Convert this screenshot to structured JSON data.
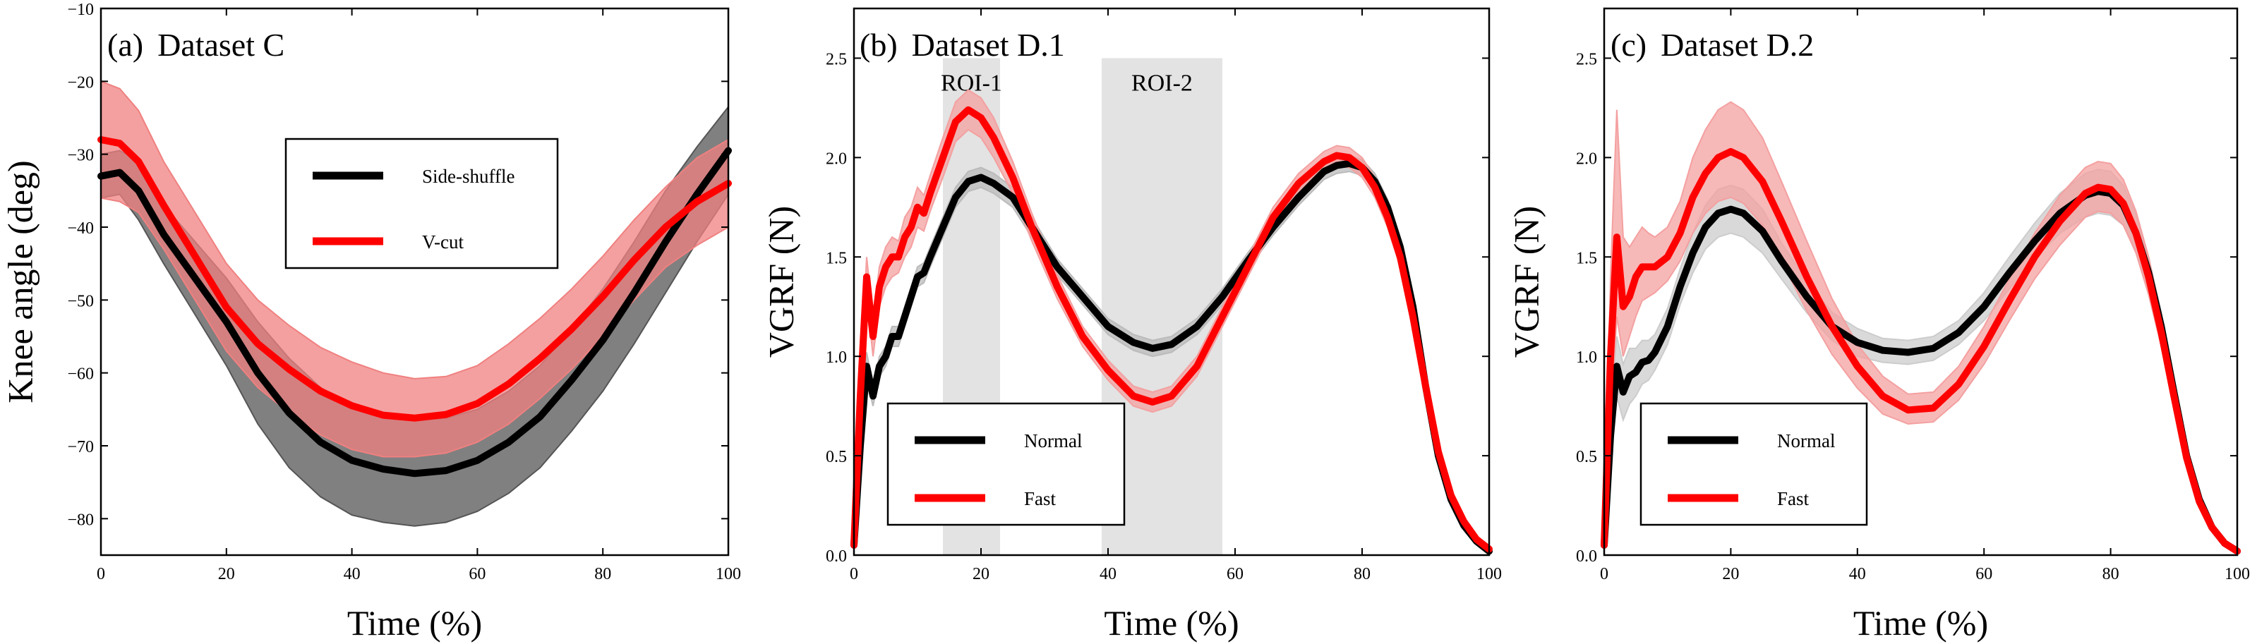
{
  "chart_data": [
    {
      "type": "line",
      "panel": "(a)",
      "title": "Dataset C",
      "xlabel": "Time  (%)",
      "ylabel": "Knee angle  (deg)",
      "xlim": [
        0,
        100
      ],
      "ylim": [
        -85,
        -10
      ],
      "xticks": [
        "0",
        "20",
        "40",
        "60",
        "80",
        "100"
      ],
      "yticks": [
        "−80",
        "−70",
        "−60",
        "−50",
        "−40",
        "−30",
        "−20",
        "−10"
      ],
      "legend_position": "upper-center",
      "legend": [
        "Side-shuffle",
        "V-cut"
      ],
      "series": [
        {
          "name": "Side-shuffle",
          "color": "#000000",
          "band_color": "#555555",
          "x": [
            0,
            3,
            6,
            10,
            15,
            20,
            25,
            30,
            35,
            40,
            45,
            50,
            55,
            60,
            65,
            70,
            75,
            80,
            85,
            90,
            95,
            100
          ],
          "mean": [
            -33,
            -32.5,
            -35,
            -41,
            -47,
            -53,
            -60,
            -65.5,
            -69.5,
            -72,
            -73.2,
            -73.8,
            -73.4,
            -72,
            -69.5,
            -66,
            -61,
            -55.5,
            -49,
            -42,
            -35.5,
            -29.5
          ],
          "lower": [
            -36,
            -35.5,
            -39,
            -45,
            -52,
            -59,
            -67,
            -73,
            -77,
            -79.5,
            -80.5,
            -81,
            -80.5,
            -79,
            -76.5,
            -73,
            -68,
            -62.5,
            -56,
            -49,
            -42,
            -35.5
          ],
          "upper": [
            -30,
            -29.5,
            -31,
            -37,
            -42,
            -47,
            -53,
            -58,
            -62,
            -64.5,
            -66,
            -66.5,
            -66.2,
            -65,
            -62.5,
            -59,
            -54,
            -48.5,
            -42,
            -35,
            -29,
            -23.5
          ]
        },
        {
          "name": "V-cut",
          "color": "#ff0000",
          "band_color": "#f08080",
          "x": [
            0,
            3,
            6,
            10,
            15,
            20,
            25,
            30,
            35,
            40,
            45,
            50,
            55,
            60,
            65,
            70,
            75,
            80,
            85,
            90,
            95,
            100
          ],
          "mean": [
            -28,
            -28.5,
            -31,
            -37,
            -44,
            -51,
            -56,
            -59.5,
            -62.5,
            -64.5,
            -65.8,
            -66.2,
            -65.7,
            -64.2,
            -61.5,
            -58,
            -54,
            -49.5,
            -44.5,
            -40,
            -36.5,
            -34
          ],
          "lower": [
            -36,
            -36.5,
            -38,
            -43,
            -50,
            -57,
            -62,
            -65.5,
            -68.5,
            -70.5,
            -71.5,
            -71.5,
            -71,
            -69.5,
            -67,
            -63.5,
            -59.5,
            -55,
            -50,
            -45.5,
            -42.5,
            -40
          ],
          "upper": [
            -20,
            -21,
            -24,
            -31,
            -38,
            -45,
            -50,
            -53.5,
            -56.5,
            -58.5,
            -60,
            -60.8,
            -60.5,
            -59,
            -56,
            -52.5,
            -48.5,
            -44,
            -39,
            -34.5,
            -30.5,
            -28
          ]
        }
      ]
    },
    {
      "type": "line",
      "panel": "(b)",
      "title": "Dataset D.1",
      "xlabel": "Time  (%)",
      "ylabel": "VGRF  (N)",
      "xlim": [
        0,
        100
      ],
      "ylim": [
        0,
        2.75
      ],
      "xticks": [
        "0",
        "20",
        "40",
        "60",
        "80",
        "100"
      ],
      "yticks": [
        "0.0",
        "0.5",
        "1.0",
        "1.5",
        "2.0",
        "2.5"
      ],
      "legend_position": "lower-left",
      "legend": [
        "Normal",
        "Fast"
      ],
      "regions": [
        {
          "label": "ROI-1",
          "x": [
            14,
            23
          ]
        },
        {
          "label": "ROI-2",
          "x": [
            39,
            58
          ]
        }
      ],
      "series": [
        {
          "name": "Normal",
          "color": "#000000",
          "band_color": "#bbbbbb",
          "x": [
            0,
            1,
            2,
            3,
            4,
            5,
            6,
            7,
            8,
            9,
            10,
            11,
            12,
            14,
            16,
            18,
            20,
            22,
            25,
            28,
            32,
            36,
            40,
            44,
            47,
            50,
            54,
            58,
            62,
            66,
            70,
            74,
            76,
            78,
            80,
            82,
            84,
            86,
            88,
            90,
            92,
            94,
            96,
            98,
            100
          ],
          "mean": [
            0.05,
            0.55,
            0.95,
            0.8,
            0.95,
            1.0,
            1.1,
            1.1,
            1.2,
            1.3,
            1.4,
            1.42,
            1.5,
            1.65,
            1.8,
            1.88,
            1.9,
            1.87,
            1.8,
            1.65,
            1.45,
            1.3,
            1.15,
            1.07,
            1.04,
            1.06,
            1.15,
            1.3,
            1.48,
            1.65,
            1.8,
            1.93,
            1.96,
            1.97,
            1.95,
            1.88,
            1.75,
            1.55,
            1.25,
            0.85,
            0.5,
            0.28,
            0.15,
            0.07,
            0.02
          ],
          "lower": [
            0.03,
            0.5,
            0.88,
            0.75,
            0.9,
            0.95,
            1.05,
            1.05,
            1.15,
            1.25,
            1.35,
            1.37,
            1.45,
            1.6,
            1.75,
            1.83,
            1.85,
            1.82,
            1.75,
            1.6,
            1.41,
            1.26,
            1.11,
            1.03,
            1.0,
            1.02,
            1.11,
            1.26,
            1.44,
            1.61,
            1.76,
            1.89,
            1.92,
            1.93,
            1.91,
            1.84,
            1.71,
            1.51,
            1.21,
            0.82,
            0.47,
            0.26,
            0.13,
            0.06,
            0.01
          ],
          "upper": [
            0.07,
            0.6,
            1.02,
            0.85,
            1.0,
            1.05,
            1.15,
            1.15,
            1.25,
            1.35,
            1.45,
            1.47,
            1.55,
            1.7,
            1.85,
            1.93,
            1.95,
            1.92,
            1.85,
            1.7,
            1.49,
            1.34,
            1.19,
            1.11,
            1.08,
            1.1,
            1.19,
            1.34,
            1.52,
            1.69,
            1.84,
            1.97,
            2.0,
            2.01,
            1.99,
            1.92,
            1.79,
            1.59,
            1.29,
            0.88,
            0.53,
            0.3,
            0.17,
            0.08,
            0.03
          ]
        },
        {
          "name": "Fast",
          "color": "#ff0000",
          "band_color": "#f4a0a0",
          "x": [
            0,
            1,
            2,
            3,
            4,
            5,
            6,
            7,
            8,
            9,
            10,
            11,
            12,
            14,
            16,
            18,
            20,
            22,
            25,
            28,
            32,
            36,
            40,
            44,
            47,
            50,
            54,
            58,
            62,
            66,
            70,
            74,
            76,
            78,
            80,
            82,
            84,
            86,
            88,
            90,
            92,
            94,
            96,
            98,
            100
          ],
          "mean": [
            0.05,
            0.8,
            1.4,
            1.1,
            1.35,
            1.45,
            1.5,
            1.5,
            1.6,
            1.65,
            1.75,
            1.72,
            1.82,
            2.0,
            2.18,
            2.24,
            2.2,
            2.1,
            1.9,
            1.65,
            1.35,
            1.1,
            0.93,
            0.8,
            0.77,
            0.8,
            0.95,
            1.2,
            1.45,
            1.7,
            1.87,
            1.98,
            2.01,
            2.0,
            1.95,
            1.85,
            1.7,
            1.5,
            1.2,
            0.85,
            0.52,
            0.3,
            0.17,
            0.08,
            0.03
          ],
          "lower": [
            0.03,
            0.7,
            1.3,
            1.0,
            1.25,
            1.35,
            1.4,
            1.42,
            1.5,
            1.55,
            1.65,
            1.63,
            1.73,
            1.9,
            2.08,
            2.14,
            2.1,
            2.0,
            1.82,
            1.58,
            1.29,
            1.05,
            0.88,
            0.75,
            0.72,
            0.75,
            0.9,
            1.15,
            1.4,
            1.65,
            1.82,
            1.93,
            1.96,
            1.95,
            1.9,
            1.8,
            1.65,
            1.45,
            1.16,
            0.82,
            0.49,
            0.28,
            0.15,
            0.07,
            0.02
          ],
          "upper": [
            0.07,
            0.9,
            1.5,
            1.2,
            1.45,
            1.55,
            1.6,
            1.58,
            1.7,
            1.75,
            1.85,
            1.81,
            1.91,
            2.1,
            2.28,
            2.34,
            2.3,
            2.2,
            1.98,
            1.72,
            1.41,
            1.15,
            0.98,
            0.85,
            0.82,
            0.85,
            1.0,
            1.25,
            1.5,
            1.75,
            1.92,
            2.03,
            2.06,
            2.05,
            2.0,
            1.9,
            1.75,
            1.55,
            1.24,
            0.88,
            0.55,
            0.32,
            0.19,
            0.09,
            0.04
          ]
        }
      ]
    },
    {
      "type": "line",
      "panel": "(c)",
      "title": "Dataset D.2",
      "xlabel": "Time  (%)",
      "ylabel": "VGRF  (N)",
      "xlim": [
        0,
        100
      ],
      "ylim": [
        0,
        2.75
      ],
      "xticks": [
        "0",
        "20",
        "40",
        "60",
        "80",
        "100"
      ],
      "yticks": [
        "0.0",
        "0.5",
        "1.0",
        "1.5",
        "2.0",
        "2.5"
      ],
      "legend_position": "lower-left",
      "legend": [
        "Normal",
        "Fast"
      ],
      "series": [
        {
          "name": "Normal",
          "color": "#000000",
          "band_color": "#cccccc",
          "x": [
            0,
            1,
            2,
            3,
            4,
            5,
            6,
            7,
            8,
            10,
            12,
            14,
            16,
            18,
            20,
            22,
            25,
            28,
            32,
            36,
            40,
            44,
            48,
            52,
            56,
            60,
            64,
            68,
            72,
            76,
            78,
            80,
            82,
            84,
            86,
            88,
            90,
            92,
            94,
            96,
            98,
            100
          ],
          "mean": [
            0.05,
            0.6,
            0.95,
            0.82,
            0.9,
            0.92,
            0.97,
            0.98,
            1.02,
            1.15,
            1.35,
            1.52,
            1.65,
            1.72,
            1.74,
            1.72,
            1.63,
            1.48,
            1.3,
            1.15,
            1.07,
            1.03,
            1.02,
            1.04,
            1.12,
            1.25,
            1.42,
            1.58,
            1.72,
            1.81,
            1.83,
            1.82,
            1.76,
            1.62,
            1.42,
            1.15,
            0.82,
            0.5,
            0.28,
            0.14,
            0.06,
            0.02
          ],
          "lower": [
            0.03,
            0.45,
            0.8,
            0.68,
            0.76,
            0.8,
            0.86,
            0.88,
            0.93,
            1.06,
            1.26,
            1.42,
            1.54,
            1.6,
            1.62,
            1.6,
            1.52,
            1.39,
            1.22,
            1.08,
            1.0,
            0.97,
            0.96,
            0.98,
            1.06,
            1.18,
            1.34,
            1.49,
            1.62,
            1.7,
            1.72,
            1.71,
            1.66,
            1.53,
            1.34,
            1.08,
            0.77,
            0.46,
            0.26,
            0.13,
            0.05,
            0.01
          ],
          "upper": [
            0.07,
            0.75,
            1.1,
            0.96,
            1.04,
            1.04,
            1.08,
            1.08,
            1.11,
            1.24,
            1.44,
            1.62,
            1.76,
            1.84,
            1.86,
            1.84,
            1.74,
            1.57,
            1.38,
            1.22,
            1.14,
            1.09,
            1.08,
            1.1,
            1.18,
            1.32,
            1.5,
            1.67,
            1.82,
            1.92,
            1.94,
            1.93,
            1.86,
            1.71,
            1.5,
            1.22,
            0.87,
            0.54,
            0.3,
            0.15,
            0.07,
            0.03
          ]
        },
        {
          "name": "Fast",
          "color": "#ff0000",
          "band_color": "#f4a0a0",
          "x": [
            0,
            1,
            2,
            3,
            4,
            5,
            6,
            7,
            8,
            10,
            12,
            14,
            16,
            18,
            20,
            22,
            25,
            28,
            32,
            36,
            40,
            44,
            48,
            52,
            56,
            60,
            64,
            68,
            72,
            76,
            78,
            80,
            82,
            84,
            86,
            88,
            90,
            92,
            94,
            96,
            98,
            100
          ],
          "mean": [
            0.05,
            1.0,
            1.6,
            1.25,
            1.3,
            1.4,
            1.45,
            1.45,
            1.45,
            1.5,
            1.62,
            1.8,
            1.92,
            2.0,
            2.03,
            2.0,
            1.88,
            1.68,
            1.4,
            1.15,
            0.95,
            0.8,
            0.73,
            0.74,
            0.86,
            1.05,
            1.28,
            1.5,
            1.68,
            1.82,
            1.85,
            1.84,
            1.77,
            1.62,
            1.4,
            1.12,
            0.8,
            0.49,
            0.27,
            0.14,
            0.06,
            0.02
          ],
          "lower": [
            0.03,
            0.7,
            1.2,
            1.0,
            1.1,
            1.2,
            1.28,
            1.3,
            1.32,
            1.38,
            1.48,
            1.62,
            1.72,
            1.78,
            1.8,
            1.77,
            1.66,
            1.48,
            1.23,
            1.01,
            0.84,
            0.71,
            0.66,
            0.67,
            0.78,
            0.96,
            1.18,
            1.39,
            1.56,
            1.7,
            1.73,
            1.72,
            1.66,
            1.52,
            1.31,
            1.05,
            0.75,
            0.46,
            0.25,
            0.13,
            0.05,
            0.01
          ],
          "upper": [
            0.07,
            1.4,
            2.24,
            1.6,
            1.55,
            1.6,
            1.65,
            1.62,
            1.6,
            1.65,
            1.78,
            2.0,
            2.14,
            2.24,
            2.28,
            2.24,
            2.1,
            1.88,
            1.58,
            1.29,
            1.06,
            0.9,
            0.81,
            0.82,
            0.95,
            1.15,
            1.39,
            1.62,
            1.81,
            1.95,
            1.98,
            1.97,
            1.89,
            1.73,
            1.5,
            1.2,
            0.86,
            0.53,
            0.3,
            0.15,
            0.07,
            0.03
          ]
        }
      ]
    }
  ]
}
